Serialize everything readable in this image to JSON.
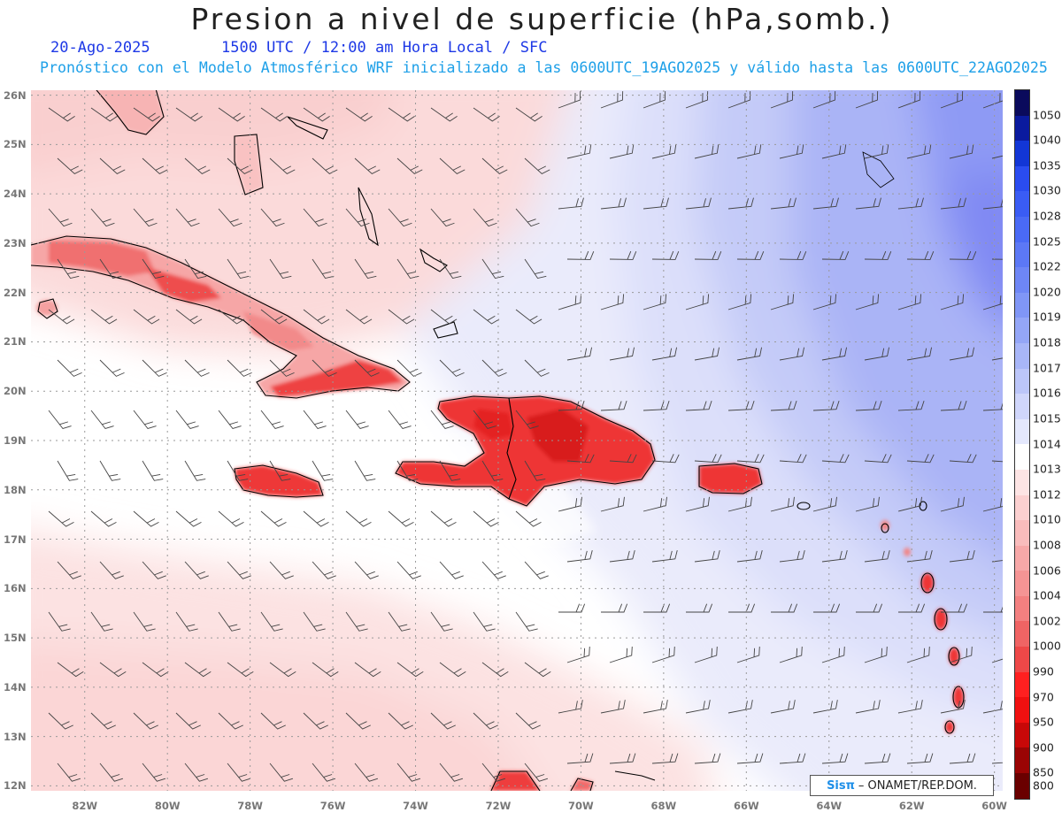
{
  "title": "Presion a nivel de superficie (hPa,somb.)",
  "date": "20-Ago-2025",
  "time_info": "1500 UTC / 12:00 am Hora Local / SFC",
  "forecast_info": "Pronóstico con el Modelo Atmosférico WRF inicializado a las 0600UTC_19AGO2025 y válido hasta las  0600UTC_22AGO2025",
  "branding": {
    "logo": "Sisπ",
    "text": "– ONAMET/REP.DOM."
  },
  "latitude_labels": [
    "26N",
    "25N",
    "24N",
    "23N",
    "22N",
    "21N",
    "20N",
    "19N",
    "18N",
    "17N",
    "16N",
    "15N",
    "14N",
    "13N",
    "12N"
  ],
  "longitude_labels": [
    "82W",
    "80W",
    "78W",
    "76W",
    "74W",
    "72W",
    "70W",
    "68W",
    "66W",
    "64W",
    "62W",
    "60W"
  ],
  "colorbar": {
    "labels": [
      "1050",
      "1040",
      "1035",
      "1030",
      "1028",
      "1025",
      "1022",
      "1020",
      "1019",
      "1018",
      "1017",
      "1016",
      "1015",
      "1014",
      "1013",
      "1012",
      "1010",
      "1008",
      "1006",
      "1004",
      "1002",
      "1000",
      "990",
      "970",
      "950",
      "900",
      "850",
      "800"
    ],
    "colors": [
      "#0a0a5c",
      "#0a1a9e",
      "#1236d6",
      "#2a4cf0",
      "#3a5cf4",
      "#4a6af5",
      "#5c78f5",
      "#6e86f5",
      "#8096f6",
      "#94a6f7",
      "#a8b6f8",
      "#bcc6f9",
      "#d0d6fb",
      "#e4e8fd",
      "#ffffff",
      "#fde4e4",
      "#fbd0d0",
      "#f9bcbc",
      "#f7a8a8",
      "#f59494",
      "#f38080",
      "#f06464",
      "#ee4848",
      "#ff2020",
      "#f01010",
      "#c80808",
      "#9a0404",
      "#6a0000"
    ]
  },
  "map": {
    "extent": {
      "lon_min": -83.3,
      "lon_max": -59.8,
      "lat_min": 11.9,
      "lat_max": 26.1
    },
    "land_color": "#ee3a3a",
    "grid": "dotted"
  }
}
